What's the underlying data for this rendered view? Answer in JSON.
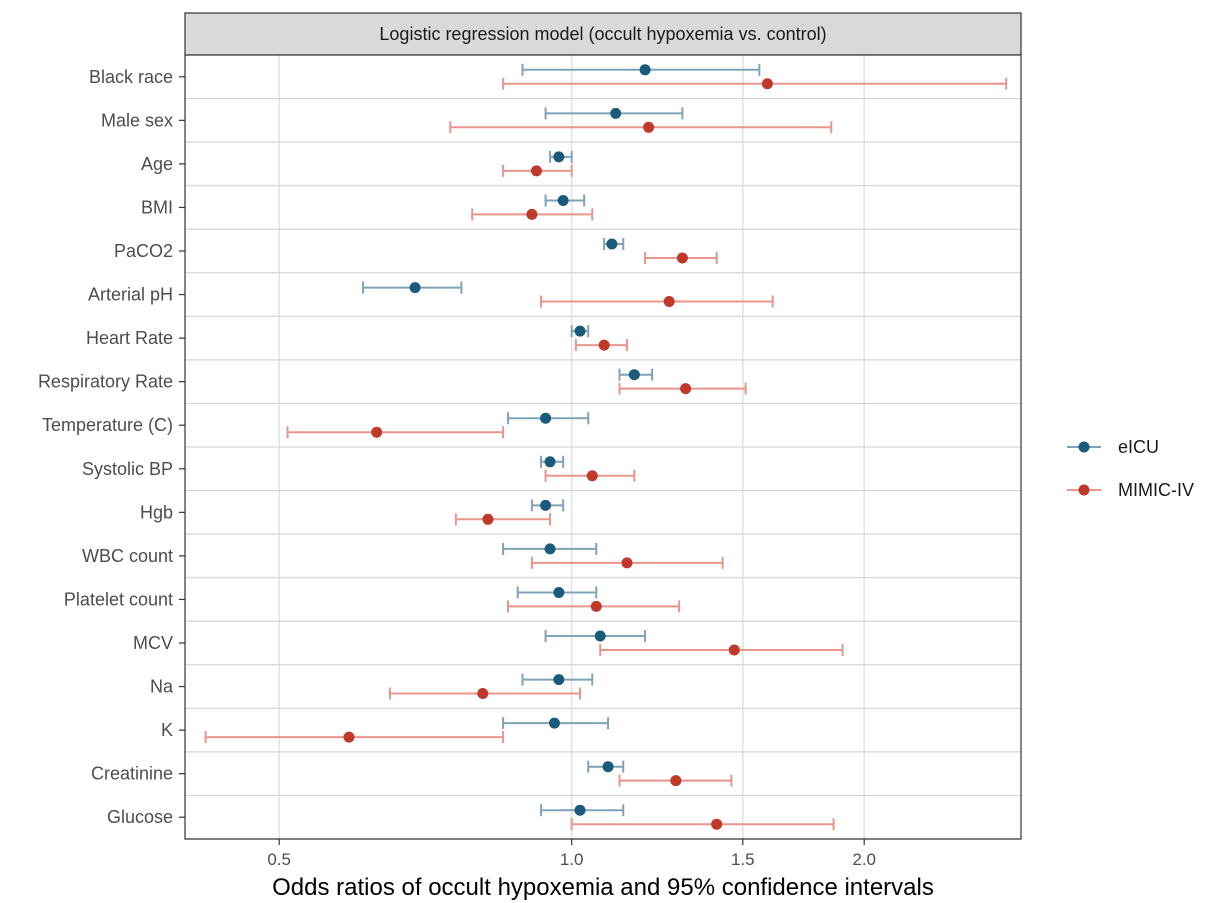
{
  "chart_data": {
    "type": "scatter",
    "subtype": "forest-plot",
    "strip_title": "Logistic regression model (occult hypoxemia vs. control)",
    "xlabel": "Odds ratios of occult hypoxemia and 95% confidence intervals",
    "ylabel": "",
    "x_scale": "log",
    "xlim": [
      0.4,
      2.9
    ],
    "x_ticks": [
      0.5,
      1.0,
      1.5,
      2.0
    ],
    "x_tick_labels": [
      "0.5",
      "1.0",
      "1.5",
      "2.0"
    ],
    "grid": true,
    "legend_position": "right",
    "categories": [
      "Black race",
      "Male sex",
      "Age",
      "BMI",
      "PaCO2",
      "Arterial pH",
      "Heart Rate",
      "Respiratory Rate",
      "Temperature (C)",
      "Systolic BP",
      "Hgb",
      "WBC count",
      "Platelet count",
      "MCV",
      "Na",
      "K",
      "Creatinine",
      "Glucose"
    ],
    "series": [
      {
        "name": "eICU",
        "color": "#1a5a7a",
        "ci_color": "#7fa3b8",
        "estimate": [
          1.19,
          1.11,
          0.97,
          0.98,
          1.1,
          0.69,
          1.02,
          1.16,
          0.94,
          0.95,
          0.94,
          0.95,
          0.97,
          1.07,
          0.97,
          0.96,
          1.09,
          1.02
        ],
        "lower": [
          0.89,
          0.94,
          0.95,
          0.94,
          1.08,
          0.61,
          1.0,
          1.12,
          0.86,
          0.93,
          0.91,
          0.85,
          0.88,
          0.94,
          0.89,
          0.85,
          1.04,
          0.93
        ],
        "upper": [
          1.56,
          1.3,
          1.0,
          1.03,
          1.13,
          0.77,
          1.04,
          1.21,
          1.04,
          0.98,
          0.98,
          1.06,
          1.06,
          1.19,
          1.05,
          1.09,
          1.13,
          1.13
        ]
      },
      {
        "name": "MIMIC-IV",
        "color": "#c0392b",
        "ci_color": "#e8958c",
        "estimate": [
          1.59,
          1.2,
          0.92,
          0.91,
          1.3,
          1.26,
          1.08,
          1.31,
          0.63,
          1.05,
          0.82,
          1.14,
          1.06,
          1.47,
          0.81,
          0.59,
          1.28,
          1.41
        ],
        "lower": [
          0.85,
          0.75,
          0.85,
          0.79,
          1.19,
          0.93,
          1.01,
          1.12,
          0.51,
          0.94,
          0.76,
          0.91,
          0.86,
          1.07,
          0.65,
          0.42,
          1.12,
          1.0
        ],
        "upper": [
          2.8,
          1.85,
          1.0,
          1.05,
          1.41,
          1.61,
          1.14,
          1.51,
          0.85,
          1.16,
          0.95,
          1.43,
          1.29,
          1.9,
          1.02,
          0.85,
          1.46,
          1.86
        ]
      }
    ]
  }
}
